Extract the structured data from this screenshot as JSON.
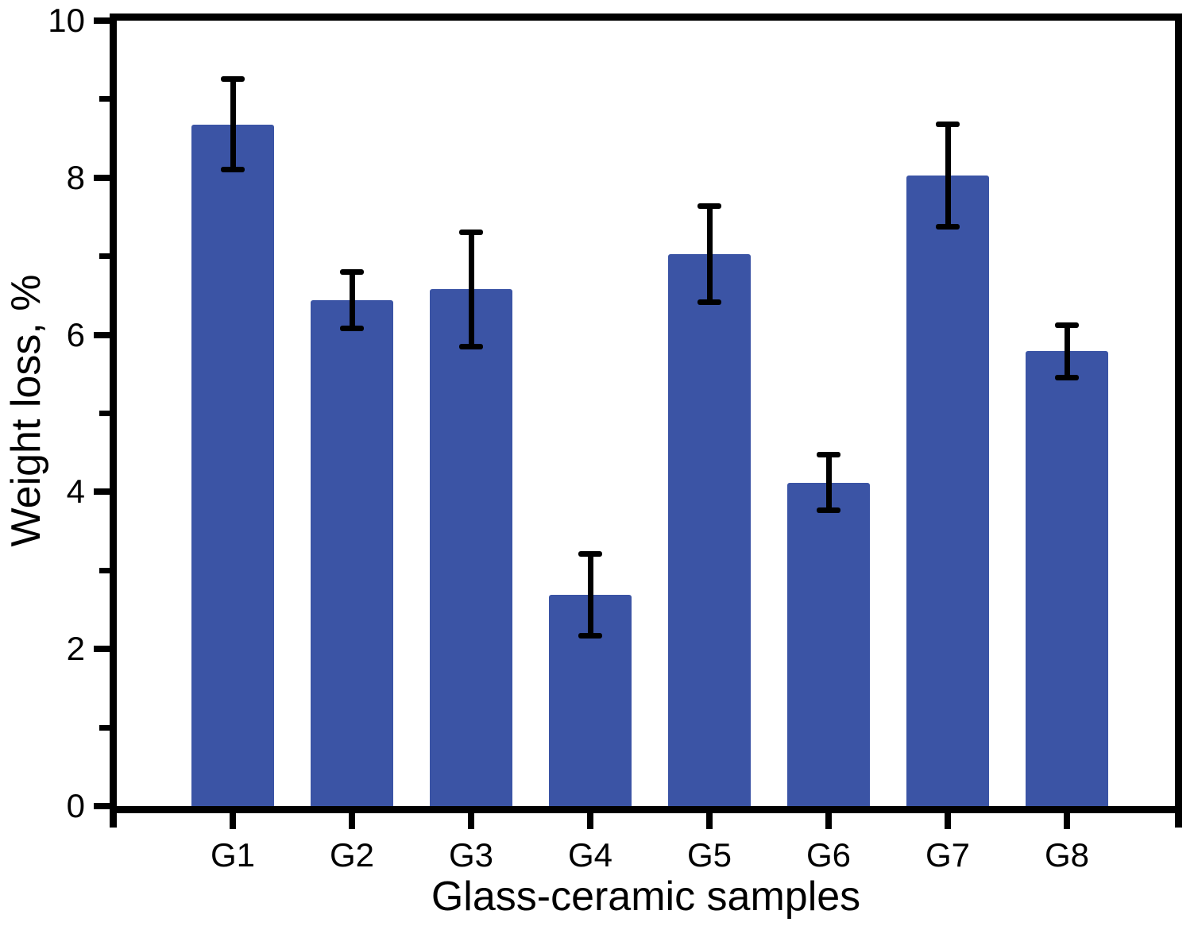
{
  "figure": {
    "background": "#ffffff"
  },
  "chart_data": {
    "type": "bar",
    "title": "",
    "xlabel": "Glass-ceramic samples",
    "ylabel": "Weight loss, %",
    "categories": [
      "G1",
      "G2",
      "G3",
      "G4",
      "G5",
      "G6",
      "G7",
      "G8"
    ],
    "values": [
      8.68,
      6.44,
      6.58,
      2.69,
      7.03,
      4.12,
      8.03,
      5.79
    ],
    "errors": [
      0.58,
      0.36,
      0.73,
      0.52,
      0.61,
      0.35,
      0.65,
      0.33
    ],
    "ylim": [
      0,
      10
    ],
    "y_major_ticks": [
      0,
      2,
      4,
      6,
      8,
      10
    ],
    "y_minor_ticks": [
      1,
      3,
      5,
      7,
      9
    ],
    "grid": false,
    "legend": "none",
    "bar_color": "#3b54a5",
    "axis_color": "#000000",
    "error_color": "#000000"
  }
}
